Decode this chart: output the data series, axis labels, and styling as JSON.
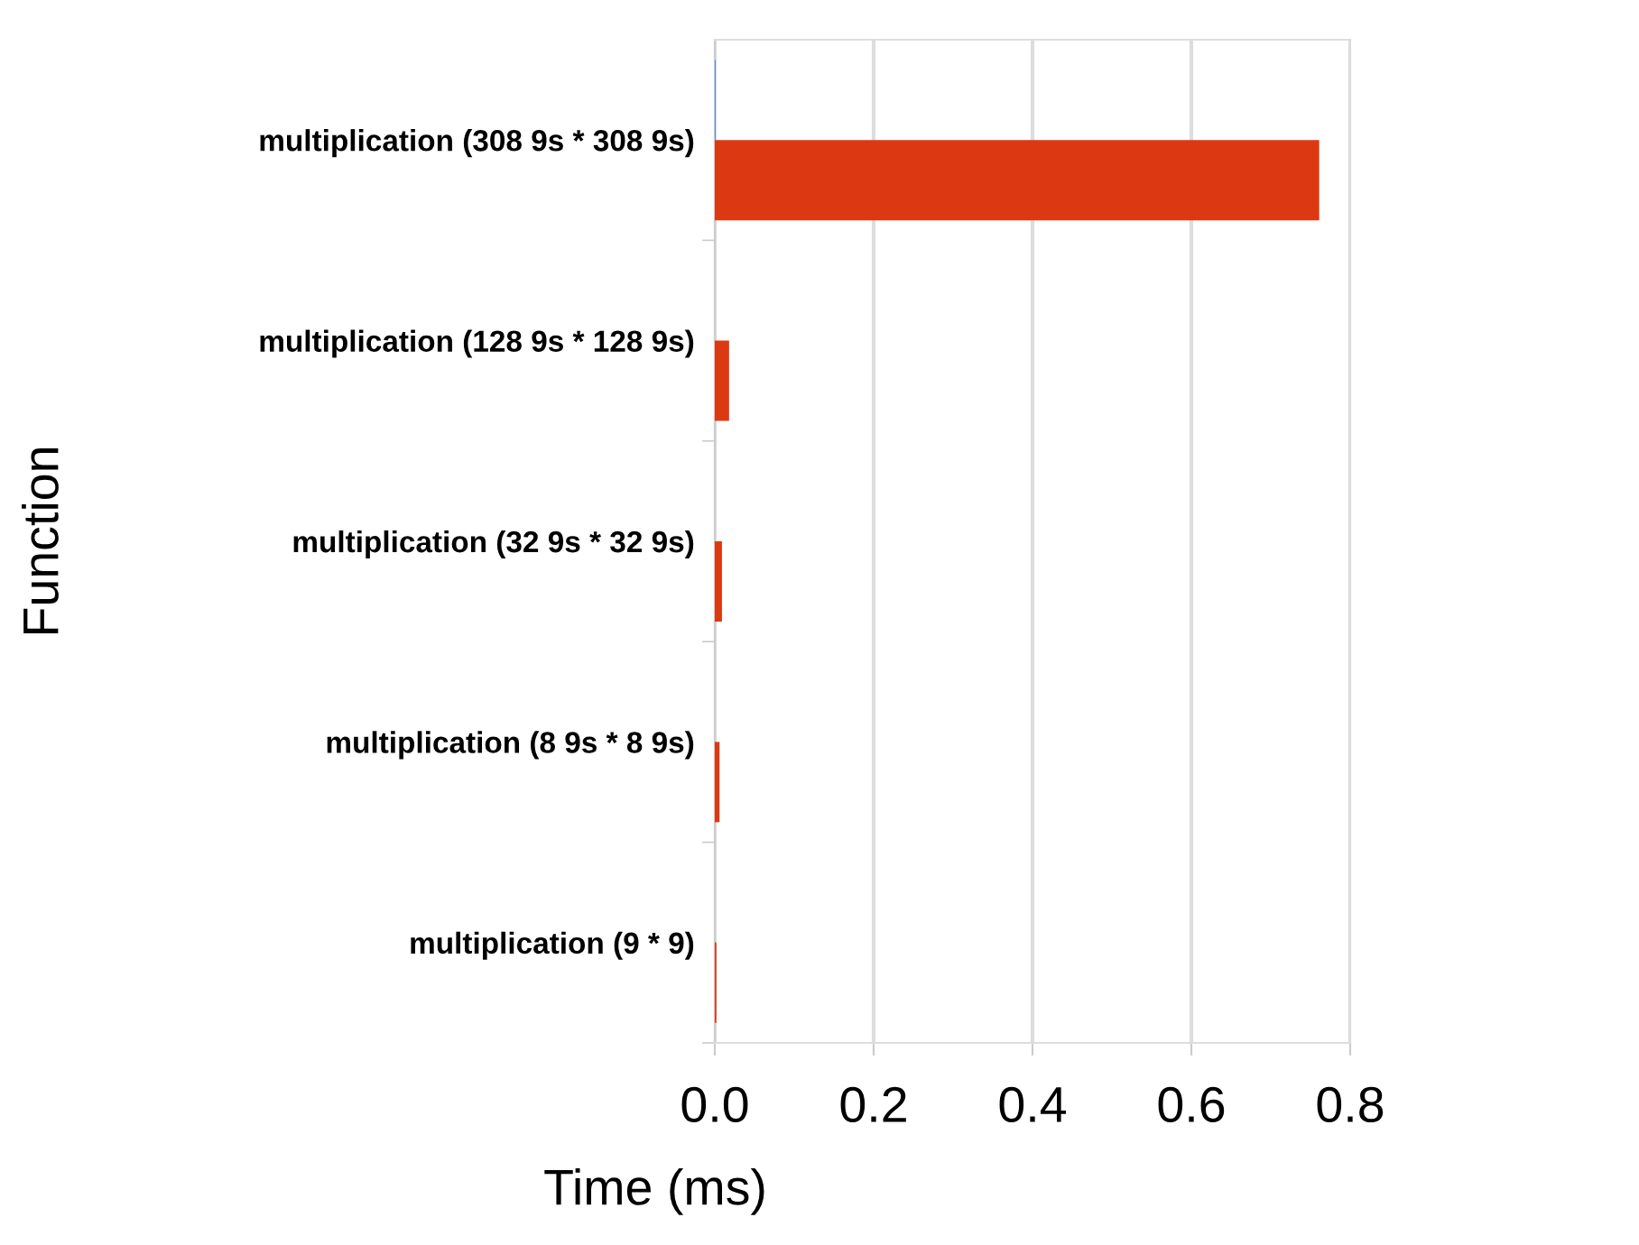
{
  "chart_data": {
    "type": "bar",
    "orientation": "horizontal",
    "categories": [
      "multiplication (308 9s * 308 9s)",
      "multiplication (128 9s * 128 9s)",
      "multiplication (32 9s * 32 9s)",
      "multiplication (8 9s * 8 9s)",
      "multiplication (9 * 9)"
    ],
    "series": [
      {
        "color": "#4a86e8",
        "values": [
          0.001,
          0,
          0,
          0,
          0
        ]
      },
      {
        "color": "#dc3912",
        "values": [
          0.761,
          0.018,
          0.009,
          0.006,
          0.002
        ]
      }
    ],
    "xlim": [
      0,
      0.8
    ],
    "xticks": [
      {
        "value": 0,
        "label": "0.0"
      },
      0.2,
      0.4,
      0.6,
      0.8
    ],
    "xlabel": "Time (ms)",
    "ylabel": "Function",
    "grid": "x"
  }
}
